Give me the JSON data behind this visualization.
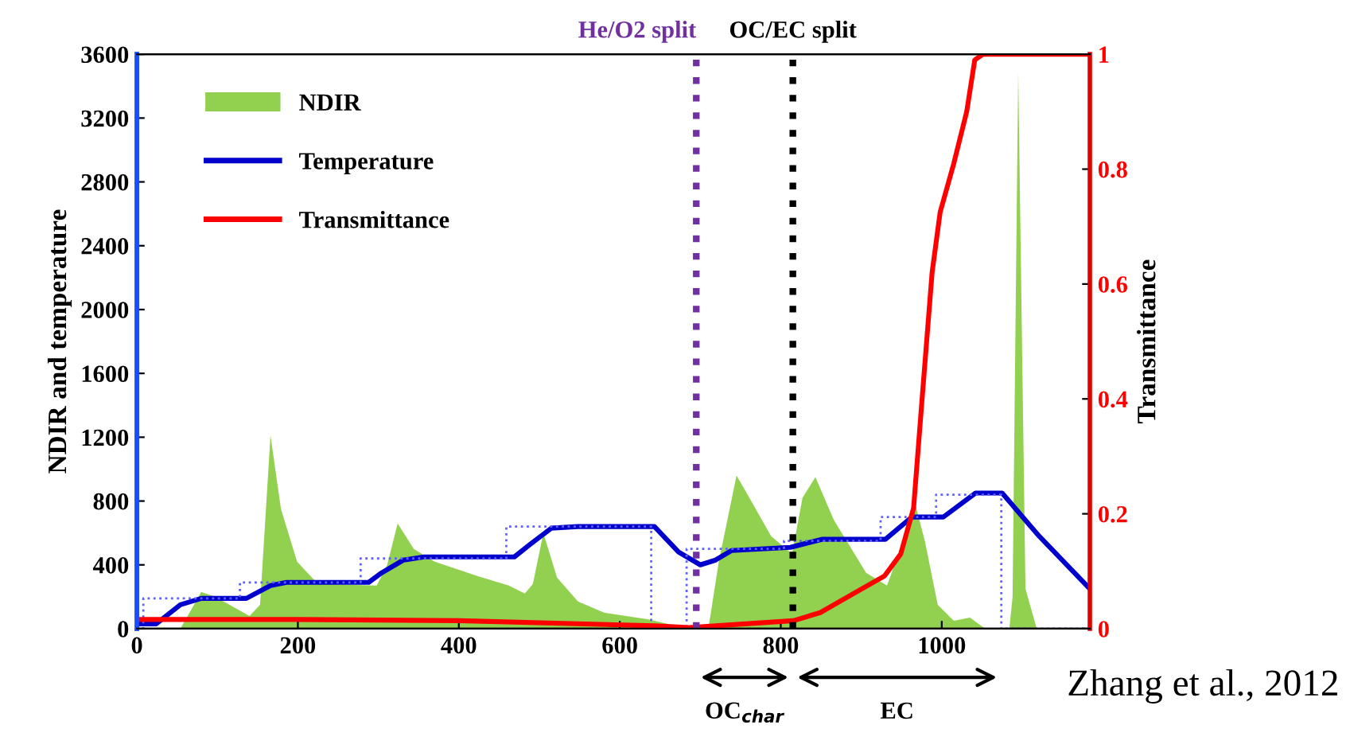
{
  "chart_data": {
    "type": "line",
    "ylabel": "NDIR and temperature",
    "y2label": "Transmittance",
    "xlim": [
      0,
      1184
    ],
    "xticks": [
      0,
      200,
      400,
      600,
      800,
      1000
    ],
    "ylim": [
      0,
      3600
    ],
    "yticks": [
      0,
      400,
      800,
      1200,
      1600,
      2000,
      2400,
      2800,
      3200,
      3600
    ],
    "y2lim": [
      0,
      1
    ],
    "y2ticks": [
      0,
      0.2,
      0.4,
      0.6,
      0.8,
      1
    ],
    "grid": false,
    "legend": "top left",
    "series": [
      {
        "name": "NDIR",
        "type": "area",
        "color": "#92d050",
        "x": [
          54,
          80,
          97,
          140,
          153,
          166,
          179,
          199,
          225,
          298,
          311,
          324,
          344,
          370,
          423,
          462,
          482,
          492,
          505,
          522,
          548,
          581,
          634,
          686,
          710,
          723,
          745,
          761,
          788,
          814,
          827,
          843,
          866,
          906,
          932,
          952,
          966,
          979,
          995,
          1015,
          1035,
          1054,
          1084,
          1088,
          1095,
          1104,
          1118
        ],
        "values": [
          0,
          230,
          200,
          80,
          150,
          1210,
          750,
          420,
          280,
          270,
          400,
          660,
          500,
          420,
          330,
          270,
          220,
          280,
          600,
          320,
          170,
          100,
          60,
          0,
          0,
          420,
          960,
          820,
          580,
          470,
          820,
          950,
          680,
          350,
          270,
          550,
          800,
          550,
          150,
          50,
          70,
          0,
          0,
          200,
          3490,
          250,
          0
        ]
      },
      {
        "name": "Temperature",
        "color": "#0000cc",
        "line_style": "solid",
        "x": [
          0,
          24,
          54,
          80,
          136,
          166,
          186,
          288,
          304,
          331,
          357,
          469,
          489,
          515,
          548,
          643,
          673,
          700,
          719,
          739,
          812,
          851,
          930,
          963,
          1002,
          1042,
          1075,
          1121,
          1184
        ],
        "values": [
          30,
          30,
          150,
          190,
          190,
          270,
          290,
          290,
          350,
          430,
          450,
          450,
          530,
          630,
          640,
          640,
          480,
          400,
          430,
          490,
          510,
          560,
          560,
          700,
          700,
          850,
          850,
          580,
          250
        ]
      },
      {
        "type": "step",
        "color": "#6060ff",
        "line_style": "dotted",
        "x": [
          0,
          8,
          128,
          278,
          459,
          639,
          683,
          804,
          924,
          993,
          1074,
          1184
        ],
        "values": [
          0,
          190,
          290,
          440,
          640,
          0,
          500,
          550,
          700,
          840,
          0,
          0
        ]
      },
      {
        "name": "Transmittance",
        "color": "#ff0000",
        "axis": "y2",
        "line_style": "solid",
        "x": [
          0,
          200,
          400,
          643,
          686,
          816,
          849,
          889,
          929,
          949,
          965,
          975,
          988,
          998,
          1015,
          1031,
          1041,
          1051,
          1184
        ],
        "values": [
          0.016,
          0.016,
          0.014,
          0.005,
          0.002,
          0.014,
          0.028,
          0.06,
          0.092,
          0.13,
          0.21,
          0.39,
          0.62,
          0.725,
          0.81,
          0.9,
          0.99,
          1,
          1
        ]
      }
    ],
    "ref_lines": [
      {
        "axis": "x",
        "value": 695,
        "label": "He/O2 split",
        "color": "#7030a0",
        "line_style": "dotted"
      },
      {
        "axis": "x",
        "value": 815,
        "label": "OC/EC split",
        "color": "#000000",
        "line_style": "dotted"
      }
    ],
    "annotations": [
      "OC$_{char}$",
      "EC",
      "Zhang et al., 2012"
    ]
  }
}
